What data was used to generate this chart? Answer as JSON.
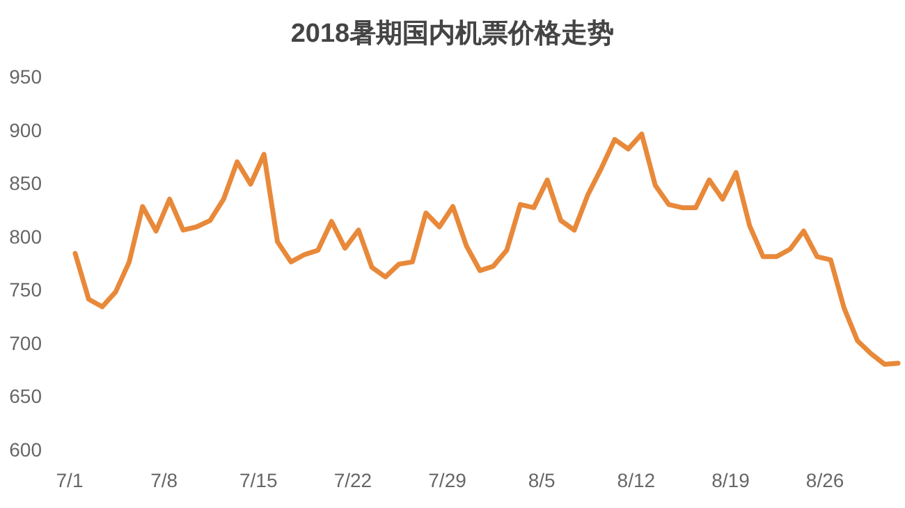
{
  "chart_data": {
    "type": "line",
    "title": "2018暑期国内机票价格走势",
    "categories": [
      "7/1",
      null,
      null,
      null,
      null,
      null,
      null,
      "7/8",
      null,
      null,
      null,
      null,
      null,
      null,
      "7/15",
      null,
      null,
      null,
      null,
      null,
      null,
      "7/22",
      null,
      null,
      null,
      null,
      null,
      null,
      "7/29",
      null,
      null,
      null,
      null,
      null,
      null,
      "8/5",
      null,
      null,
      null,
      null,
      null,
      null,
      "8/12",
      null,
      null,
      null,
      null,
      null,
      null,
      "8/19",
      null,
      null,
      null,
      null,
      null,
      null,
      "8/26",
      null,
      null,
      null,
      null,
      null
    ],
    "values": [
      784,
      741,
      734,
      748,
      776,
      828,
      805,
      835,
      806,
      809,
      815,
      835,
      870,
      849,
      877,
      795,
      776,
      783,
      787,
      814,
      789,
      806,
      771,
      762,
      774,
      776,
      822,
      809,
      828,
      791,
      768,
      772,
      787,
      830,
      827,
      853,
      815,
      806,
      839,
      864,
      891,
      882,
      896,
      848,
      830,
      827,
      827,
      853,
      835,
      860,
      810,
      781,
      781,
      788,
      805,
      781,
      778,
      733,
      702,
      690,
      680,
      681
    ],
    "color": "#e8893a",
    "ylim": [
      600,
      950
    ],
    "yticks": [
      600,
      650,
      700,
      750,
      800,
      850,
      900,
      950
    ],
    "grid": false,
    "marker": "none",
    "line_style": "solid"
  }
}
